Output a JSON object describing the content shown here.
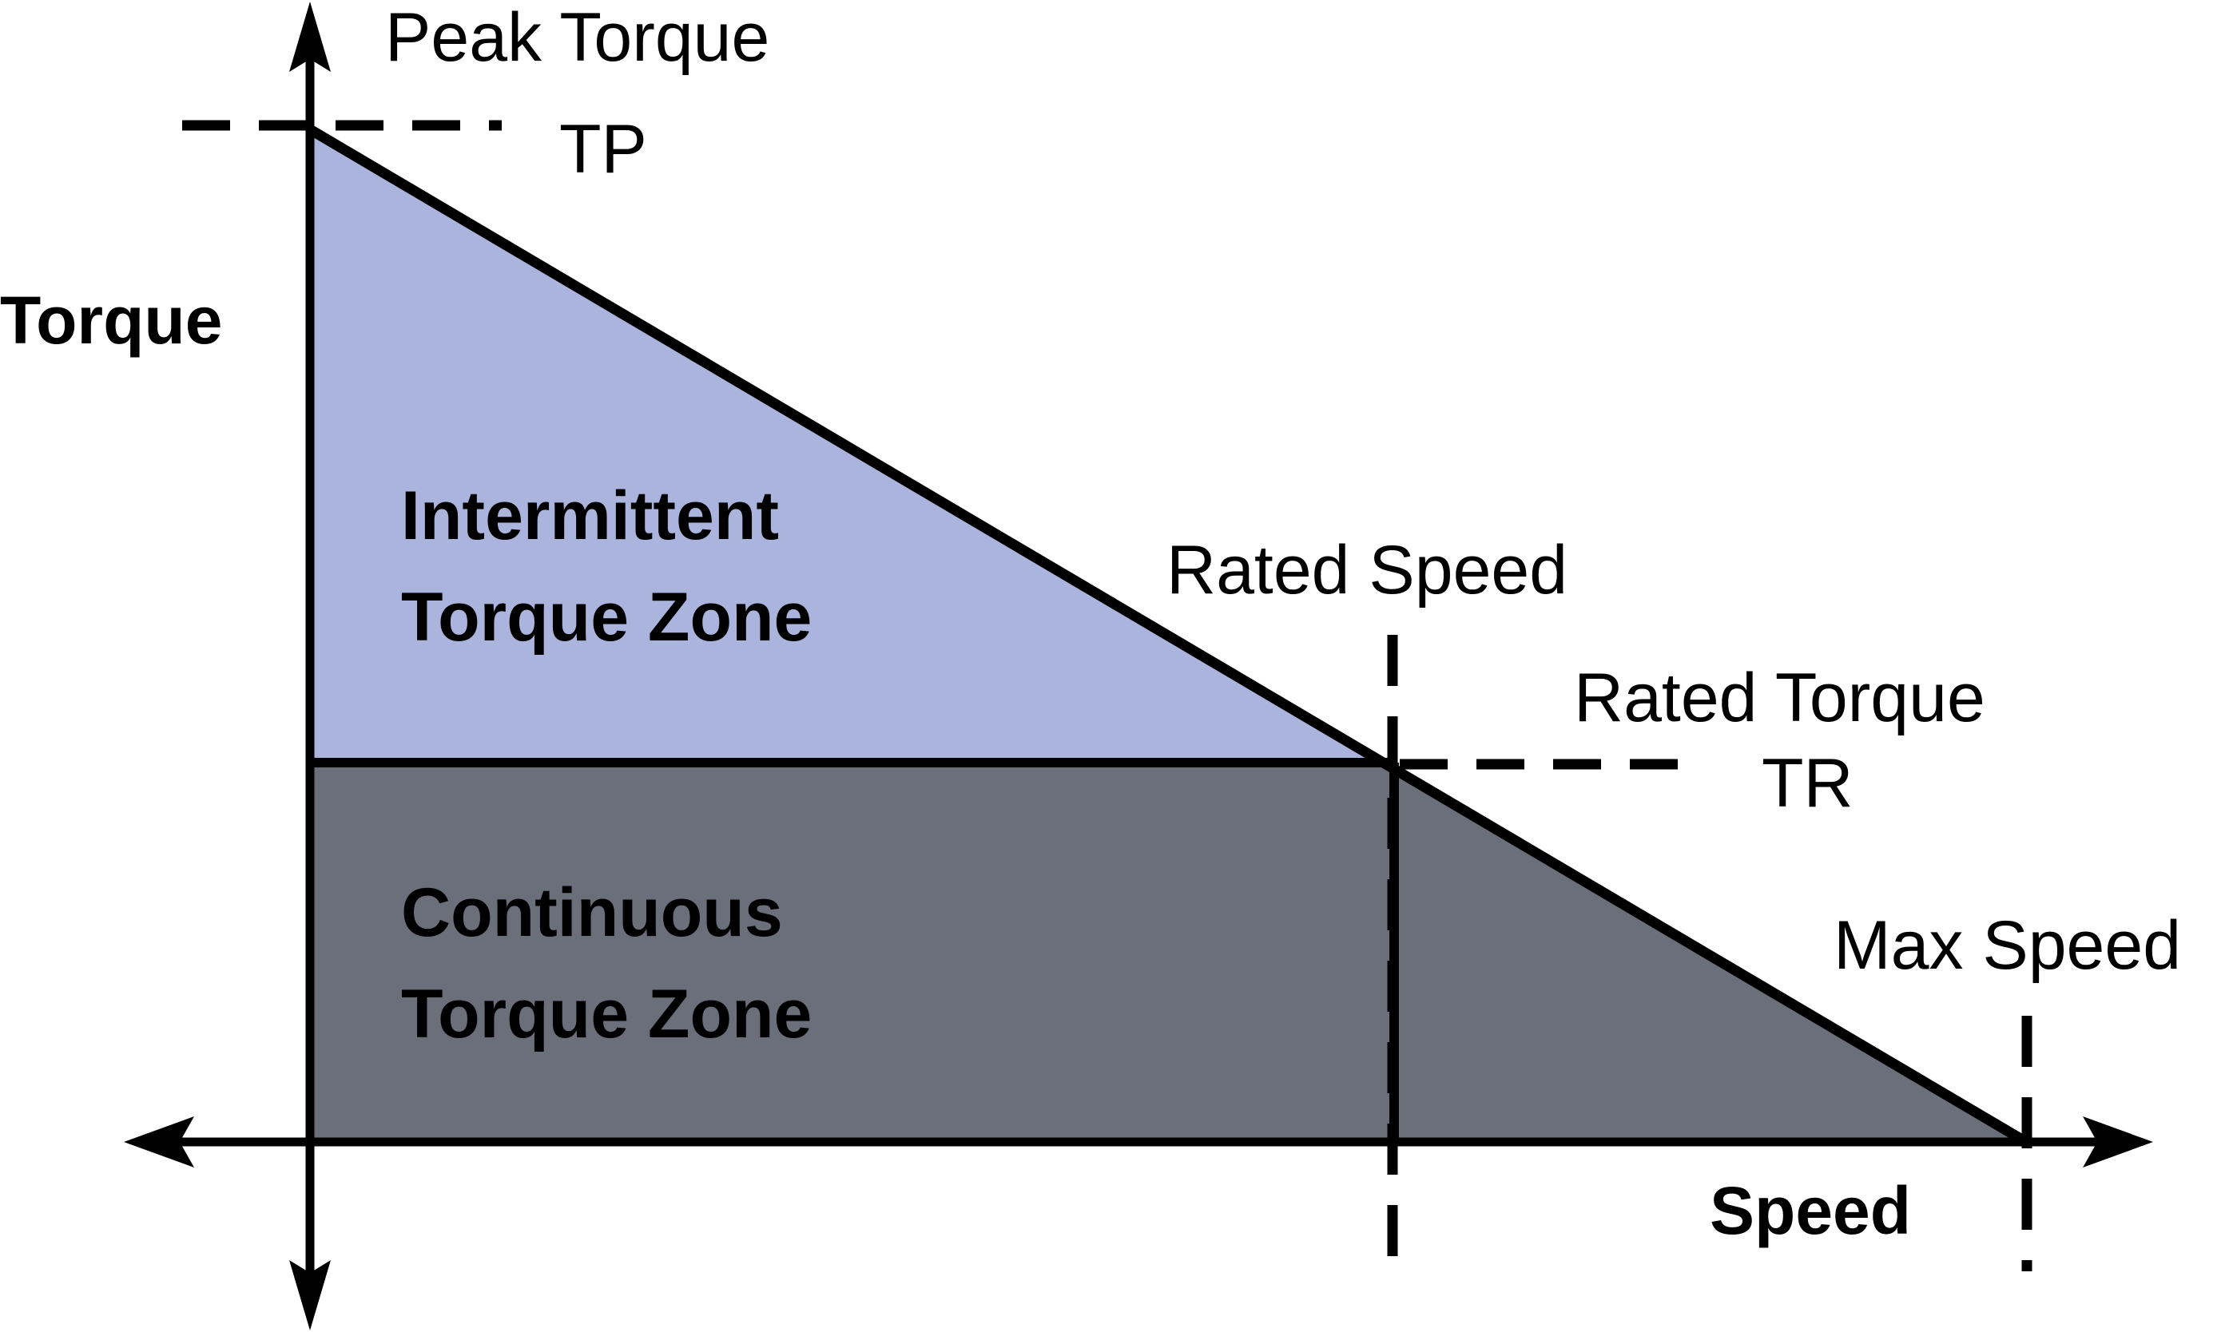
{
  "diagram": {
    "colors": {
      "intermittent_zone": "#abb4dc",
      "continuous_zone": "#6b6f7a",
      "line": "#000000",
      "background": "#ffffff"
    },
    "axes": {
      "y_label": "Torque",
      "x_label": "Speed"
    },
    "markers": {
      "peak_torque": {
        "title": "Peak Torque",
        "symbol": "TP"
      },
      "rated_speed": {
        "title": "Rated Speed"
      },
      "rated_torque": {
        "title": "Rated Torque",
        "symbol": "TR"
      },
      "max_speed": {
        "title": "Max Speed"
      }
    },
    "zones": {
      "intermittent": {
        "line1": "Intermittent",
        "line2": "Torque Zone"
      },
      "continuous": {
        "line1": "Continuous",
        "line2": "Torque Zone"
      }
    }
  }
}
